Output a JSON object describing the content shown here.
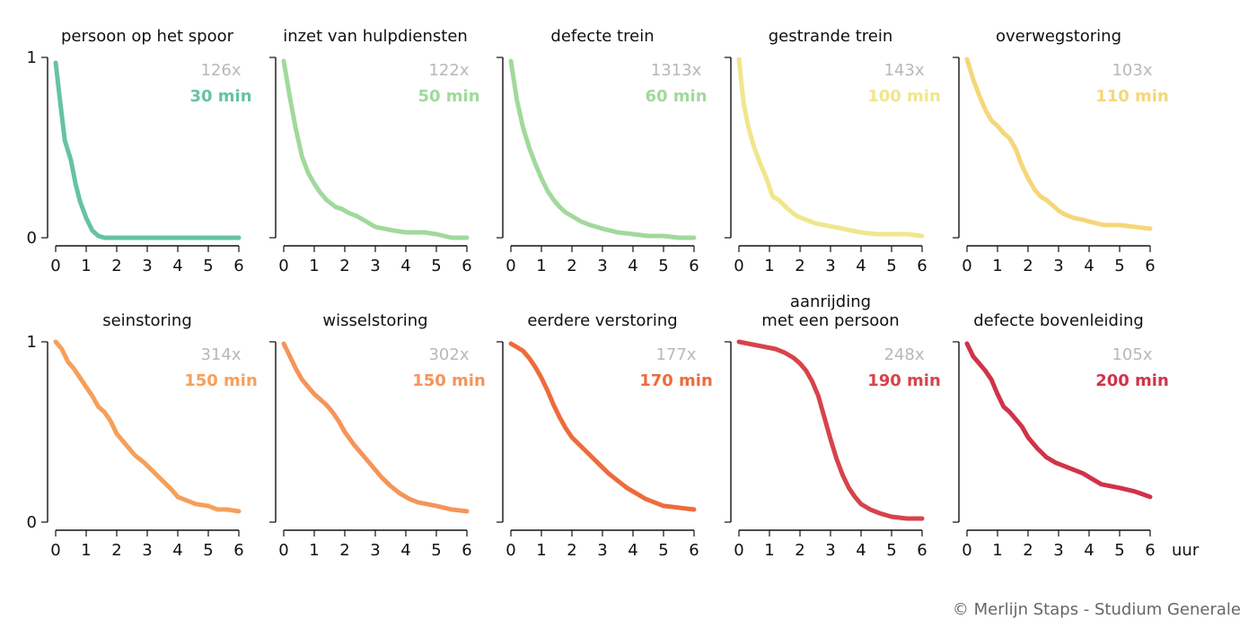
{
  "credit": "© Merlijn Staps - Studium Generale",
  "chart_data": {
    "type": "line",
    "xlim": [
      0,
      6
    ],
    "ylim": [
      0,
      1
    ],
    "xticks": [
      0,
      1,
      2,
      3,
      4,
      5,
      6
    ],
    "yticks": [
      0,
      1
    ],
    "xunit": "uur",
    "grid": false,
    "panels": [
      {
        "title": [
          "persoon op het spoor"
        ],
        "count": "126x",
        "median": "30 min",
        "color": "#66c2a5",
        "x": [
          0,
          0.15,
          0.3,
          0.5,
          0.65,
          0.8,
          1.0,
          1.2,
          1.4,
          1.6,
          2.0,
          2.2,
          3.0,
          4.0,
          5.0,
          6.0
        ],
        "y": [
          0.97,
          0.75,
          0.54,
          0.43,
          0.3,
          0.2,
          0.11,
          0.04,
          0.01,
          0.0,
          0.0,
          0.0,
          0.0,
          0.0,
          0.0,
          0.0
        ]
      },
      {
        "title": [
          "inzet van hulpdiensten"
        ],
        "count": "122x",
        "median": "50 min",
        "color": "#a1d99b",
        "x": [
          0,
          0.2,
          0.4,
          0.6,
          0.8,
          1.0,
          1.2,
          1.4,
          1.7,
          1.9,
          2.1,
          2.4,
          2.7,
          3.0,
          3.3,
          3.6,
          4.0,
          4.3,
          4.6,
          5.0,
          5.5,
          6.0
        ],
        "y": [
          0.98,
          0.78,
          0.6,
          0.45,
          0.36,
          0.3,
          0.25,
          0.21,
          0.17,
          0.16,
          0.14,
          0.12,
          0.09,
          0.06,
          0.05,
          0.04,
          0.03,
          0.03,
          0.03,
          0.02,
          0.0,
          0.0
        ]
      },
      {
        "title": [
          "defecte trein"
        ],
        "count": "1313x",
        "median": "60 min",
        "color": "#a1d99b",
        "x": [
          0,
          0.2,
          0.4,
          0.6,
          0.8,
          1.0,
          1.2,
          1.4,
          1.6,
          1.8,
          2.0,
          2.3,
          2.6,
          3.0,
          3.5,
          4.0,
          4.5,
          5.0,
          5.5,
          6.0
        ],
        "y": [
          0.98,
          0.76,
          0.61,
          0.5,
          0.41,
          0.33,
          0.26,
          0.21,
          0.17,
          0.14,
          0.12,
          0.09,
          0.07,
          0.05,
          0.03,
          0.02,
          0.01,
          0.01,
          0.0,
          0.0
        ]
      },
      {
        "title": [
          "gestrande trein"
        ],
        "count": "143x",
        "median": "100 min",
        "color": "#f0e68c",
        "x": [
          0,
          0.15,
          0.3,
          0.5,
          0.7,
          0.9,
          1.1,
          1.3,
          1.6,
          1.9,
          2.2,
          2.5,
          2.8,
          3.1,
          3.4,
          3.7,
          4.0,
          4.5,
          5.0,
          5.5,
          6.0
        ],
        "y": [
          0.99,
          0.75,
          0.62,
          0.5,
          0.41,
          0.33,
          0.23,
          0.21,
          0.16,
          0.12,
          0.1,
          0.08,
          0.07,
          0.06,
          0.05,
          0.04,
          0.03,
          0.02,
          0.02,
          0.02,
          0.01
        ]
      },
      {
        "title": [
          "overwegstoring"
        ],
        "count": "103x",
        "median": "110 min",
        "color": "#f5d77a",
        "x": [
          0,
          0.2,
          0.4,
          0.6,
          0.8,
          1.0,
          1.2,
          1.4,
          1.6,
          1.8,
          2.0,
          2.2,
          2.4,
          2.6,
          2.8,
          3.0,
          3.2,
          3.5,
          3.8,
          4.0,
          4.5,
          5.0,
          5.5,
          6.0
        ],
        "y": [
          0.99,
          0.88,
          0.79,
          0.71,
          0.65,
          0.62,
          0.58,
          0.55,
          0.49,
          0.4,
          0.33,
          0.27,
          0.23,
          0.21,
          0.18,
          0.15,
          0.13,
          0.11,
          0.1,
          0.09,
          0.07,
          0.07,
          0.06,
          0.05
        ]
      },
      {
        "title": [
          "seinstoring"
        ],
        "count": "314x",
        "median": "150 min",
        "color": "#f5a05a",
        "x": [
          0,
          0.2,
          0.4,
          0.6,
          0.8,
          1.0,
          1.2,
          1.4,
          1.6,
          1.8,
          2.0,
          2.3,
          2.6,
          2.9,
          3.2,
          3.5,
          3.8,
          4.0,
          4.3,
          4.6,
          5.0,
          5.3,
          5.6,
          6.0
        ],
        "y": [
          1.0,
          0.96,
          0.89,
          0.85,
          0.8,
          0.75,
          0.7,
          0.64,
          0.61,
          0.56,
          0.49,
          0.43,
          0.37,
          0.33,
          0.28,
          0.23,
          0.18,
          0.14,
          0.12,
          0.1,
          0.09,
          0.07,
          0.07,
          0.06
        ]
      },
      {
        "title": [
          "wisselstoring"
        ],
        "count": "302x",
        "median": "150 min",
        "color": "#f5945a",
        "x": [
          0,
          0.2,
          0.4,
          0.6,
          0.8,
          1.0,
          1.2,
          1.4,
          1.6,
          1.8,
          2.0,
          2.3,
          2.6,
          2.9,
          3.2,
          3.5,
          3.8,
          4.1,
          4.4,
          4.7,
          5.0,
          5.5,
          6.0
        ],
        "y": [
          0.99,
          0.92,
          0.85,
          0.79,
          0.75,
          0.71,
          0.68,
          0.65,
          0.61,
          0.56,
          0.5,
          0.43,
          0.37,
          0.31,
          0.25,
          0.2,
          0.16,
          0.13,
          0.11,
          0.1,
          0.09,
          0.07,
          0.06
        ]
      },
      {
        "title": [
          "eerdere verstoring"
        ],
        "count": "177x",
        "median": "170 min",
        "color": "#ee6b3b",
        "x": [
          0,
          0.2,
          0.4,
          0.6,
          0.8,
          1.0,
          1.2,
          1.4,
          1.6,
          1.8,
          2.0,
          2.3,
          2.6,
          2.9,
          3.2,
          3.5,
          3.8,
          4.1,
          4.4,
          4.7,
          5.0,
          5.5,
          6.0
        ],
        "y": [
          0.99,
          0.97,
          0.95,
          0.91,
          0.86,
          0.8,
          0.73,
          0.65,
          0.58,
          0.52,
          0.47,
          0.42,
          0.37,
          0.32,
          0.27,
          0.23,
          0.19,
          0.16,
          0.13,
          0.11,
          0.09,
          0.08,
          0.07
        ]
      },
      {
        "title": [
          "aanrijding",
          "met een persoon"
        ],
        "count": "248x",
        "median": "190 min",
        "color": "#d7434b",
        "x": [
          0,
          0.3,
          0.6,
          0.9,
          1.2,
          1.5,
          1.8,
          2.0,
          2.2,
          2.4,
          2.6,
          2.8,
          3.0,
          3.2,
          3.4,
          3.6,
          3.8,
          4.0,
          4.3,
          4.6,
          5.0,
          5.5,
          6.0
        ],
        "y": [
          1.0,
          0.99,
          0.98,
          0.97,
          0.96,
          0.94,
          0.91,
          0.88,
          0.84,
          0.78,
          0.7,
          0.58,
          0.46,
          0.35,
          0.26,
          0.19,
          0.14,
          0.1,
          0.07,
          0.05,
          0.03,
          0.02,
          0.02
        ]
      },
      {
        "title": [
          "defecte bovenleiding"
        ],
        "count": "105x",
        "median": "200 min",
        "color": "#d0334a",
        "x": [
          0,
          0.2,
          0.4,
          0.6,
          0.8,
          1.0,
          1.2,
          1.4,
          1.6,
          1.8,
          2.0,
          2.3,
          2.6,
          2.9,
          3.2,
          3.5,
          3.8,
          4.1,
          4.4,
          4.7,
          5.0,
          5.5,
          6.0
        ],
        "y": [
          0.99,
          0.92,
          0.88,
          0.84,
          0.79,
          0.71,
          0.64,
          0.61,
          0.57,
          0.53,
          0.47,
          0.41,
          0.36,
          0.33,
          0.31,
          0.29,
          0.27,
          0.24,
          0.21,
          0.2,
          0.19,
          0.17,
          0.14
        ]
      }
    ]
  }
}
